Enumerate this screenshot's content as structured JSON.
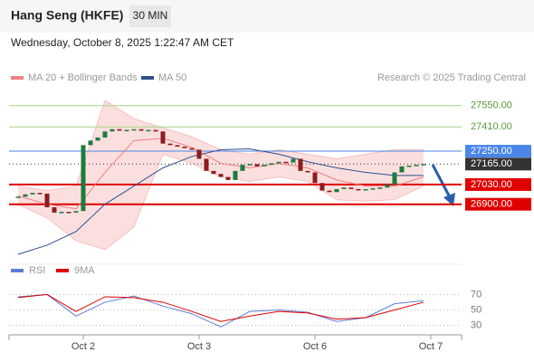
{
  "header": {
    "title": "Hang Seng (HKFE)",
    "interval": "30 MIN",
    "datetime": "Wednesday, October 8, 2025 1:22:47 AM CET"
  },
  "credit": "Research © 2025 Trading Central",
  "chart_data": [
    {
      "type": "candlestick",
      "up_color": "#1e7b3c",
      "down_color": "#8e1c1c",
      "x": [
        0.4375,
        0.5,
        0.5625,
        0.625,
        0.6875,
        0.75,
        0.8125,
        0.875,
        0.9375,
        1,
        1.0625,
        1.125,
        1.1875,
        1.25,
        1.3125,
        1.375,
        1.4375,
        1.5,
        1.5625,
        1.625,
        1.6875,
        1.75,
        1.8125,
        1.875,
        1.9375,
        2,
        2.0625,
        2.125,
        2.1875,
        2.25,
        2.3125,
        2.375,
        2.4375,
        2.5,
        2.5625,
        2.625,
        2.6875,
        2.75,
        2.8125,
        2.875,
        2.9375,
        3,
        3.0625,
        3.125,
        3.1875,
        3.25,
        3.3125,
        3.375,
        3.4375,
        3.5,
        3.5625,
        3.625,
        3.6875,
        3.75,
        3.8125,
        3.875,
        3.9375
      ],
      "values": [
        26950,
        26965,
        26975,
        26970,
        26880,
        26845,
        26850,
        26845,
        26855,
        27290,
        27320,
        27340,
        27380,
        27395,
        27385,
        27390,
        27395,
        27385,
        27390,
        27380,
        27300,
        27290,
        27280,
        27270,
        27260,
        27200,
        27120,
        27100,
        27080,
        27060,
        27120,
        27160,
        27165,
        27150,
        27160,
        27170,
        27180,
        27175,
        27200,
        27120,
        27110,
        27040,
        26990,
        26980,
        27000,
        27010,
        27000,
        26995,
        27000,
        27005,
        27010,
        27030,
        27110,
        27150,
        27155,
        27160,
        27165
      ],
      "series": [
        {
          "name": "MA 20 + Bollinger Bands",
          "color": "#f08080",
          "x": [
            0.4375,
            0.6875,
            0.9375,
            1.1875,
            1.4375,
            1.6875,
            1.9375,
            2.1875,
            2.4375,
            2.6875,
            2.9375,
            3.1875,
            3.4375,
            3.6875,
            3.9375
          ],
          "values": [
            26955,
            26900,
            26870,
            27110,
            27320,
            27335,
            27275,
            27170,
            27140,
            27170,
            27140,
            27060,
            27020,
            27020,
            27080
          ],
          "upper": [
            27020,
            26990,
            27020,
            27585,
            27465,
            27405,
            27345,
            27260,
            27230,
            27260,
            27230,
            27200,
            27230,
            27260,
            27260
          ],
          "lower": [
            26900,
            26810,
            26660,
            26600,
            26750,
            27230,
            27170,
            27080,
            27050,
            27080,
            27050,
            26930,
            26920,
            26930,
            27020
          ]
        },
        {
          "name": "MA 50",
          "color": "#2f4f8f",
          "x": [
            0.4375,
            0.6875,
            0.9375,
            1.1875,
            1.4375,
            1.6875,
            1.9375,
            2.1875,
            2.4375,
            2.6875,
            2.9375,
            3.1875,
            3.4375,
            3.6875,
            3.9375
          ],
          "values": [
            26570,
            26630,
            26720,
            26900,
            27020,
            27140,
            27215,
            27260,
            27265,
            27230,
            27180,
            27140,
            27110,
            27090,
            27090
          ]
        }
      ],
      "levels": [
        {
          "value": 27550,
          "label": "27550.00",
          "color": "#a9d18e",
          "text_color": "#5b9b3a",
          "boxed": false,
          "style": "solid"
        },
        {
          "value": 27410,
          "label": "27410.00",
          "color": "#a9d18e",
          "text_color": "#5b9b3a",
          "boxed": false,
          "style": "solid"
        },
        {
          "value": 27250,
          "label": "27250.00",
          "color": "#4a86e8",
          "text_color": "#ffffff",
          "boxed": true,
          "style": "solid"
        },
        {
          "value": 27165,
          "label": "27165.00",
          "color": "#333333",
          "text_color": "#ffffff",
          "boxed": true,
          "style": "dotted"
        },
        {
          "value": 27030,
          "label": "27030.00",
          "color": "#e00000",
          "text_color": "#ffffff",
          "boxed": true,
          "style": "thick"
        },
        {
          "value": 26900,
          "label": "26900.00",
          "color": "#e00000",
          "text_color": "#ffffff",
          "boxed": true,
          "style": "thick"
        }
      ],
      "xlim": [
        0.375,
        4.266
      ],
      "ylim": [
        26540,
        27710
      ]
    },
    {
      "type": "line",
      "series": [
        {
          "name": "RSI",
          "color": "#5b7fd6",
          "x": [
            0.4375,
            0.6875,
            0.9375,
            1.1875,
            1.4375,
            1.6875,
            1.9375,
            2.1875,
            2.4375,
            2.6875,
            2.9375,
            3.1875,
            3.4375,
            3.6875,
            3.9375
          ],
          "values": [
            67,
            70,
            42,
            60,
            68,
            55,
            45,
            28,
            48,
            50,
            47,
            35,
            40,
            58,
            62
          ]
        },
        {
          "name": "9MA",
          "color": "#e00000",
          "x": [
            0.4375,
            0.6875,
            0.9375,
            1.1875,
            1.4375,
            1.6875,
            1.9375,
            2.1875,
            2.4375,
            2.6875,
            2.9375,
            3.1875,
            3.4375,
            3.6875,
            3.9375
          ],
          "values": [
            66,
            70,
            48,
            67,
            66,
            60,
            48,
            35,
            42,
            48,
            46,
            38,
            40,
            50,
            60
          ]
        }
      ],
      "xlim": [
        0.375,
        4.266
      ],
      "ylim": [
        20,
        94
      ],
      "yticks": [
        70,
        50,
        30
      ],
      "xticks": [
        {
          "value": 1,
          "label": "Oct 2"
        },
        {
          "value": 2,
          "label": "Oct 3"
        },
        {
          "value": 3,
          "label": "Oct 6"
        },
        {
          "value": 4,
          "label": "Oct 7"
        }
      ]
    }
  ]
}
